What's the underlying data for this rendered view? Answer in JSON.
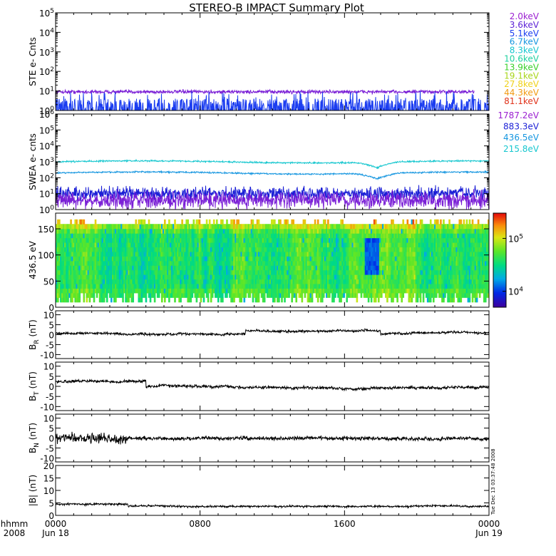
{
  "title": "STEREO-B IMPACT Summary Plot",
  "side_stamp": "Tue Dec 13 03:37:48 2008",
  "time_axis": {
    "row1_label": "hhmm",
    "row2_label": "2008",
    "ticks": [
      {
        "hour": 0,
        "label": "0000",
        "sub": "Jun 18"
      },
      {
        "hour": 8,
        "label": "0800",
        "sub": ""
      },
      {
        "hour": 16,
        "label": "1600",
        "sub": ""
      },
      {
        "hour": 24,
        "label": "0000",
        "sub": "Jun 19"
      }
    ]
  },
  "chart_data": [
    {
      "id": "ste",
      "type": "line",
      "ylabel": "STE e- Cnts",
      "yscale": "log",
      "ylim": [
        1,
        100000
      ],
      "yticks": [
        "10^0",
        "10^1",
        "10^2",
        "10^3",
        "10^4",
        "10^5"
      ],
      "legend": [
        {
          "label": "2.0keV",
          "color": "#9b1fd1"
        },
        {
          "label": "3.6keV",
          "color": "#5a1fd6"
        },
        {
          "label": "5.1keV",
          "color": "#1b3df0"
        },
        {
          "label": "6.7keV",
          "color": "#1596e0"
        },
        {
          "label": "8.3keV",
          "color": "#17c7cf"
        },
        {
          "label": "10.6keV",
          "color": "#1fd1a0"
        },
        {
          "label": "13.9keV",
          "color": "#3ad12a"
        },
        {
          "label": "19.1keV",
          "color": "#a8d61a"
        },
        {
          "label": "27.8keV",
          "color": "#f0d21a"
        },
        {
          "label": "44.3keV",
          "color": "#f29a12"
        },
        {
          "label": "81.1keV",
          "color": "#e0321a"
        }
      ],
      "series": [
        {
          "color": "#7a1fd6",
          "level": 9,
          "spread": 0.08,
          "end_hour": 23.2
        },
        {
          "color": "#1b3df0",
          "level": 1,
          "spread": 0.5,
          "end_hour": 24
        }
      ]
    },
    {
      "id": "swea",
      "type": "line",
      "ylabel": "SWEA e- cnts",
      "yscale": "log",
      "ylim": [
        1,
        1000000
      ],
      "yticks": [
        "10^0",
        "10^1",
        "10^2",
        "10^3",
        "10^4",
        "10^5",
        "10^6"
      ],
      "legend": [
        {
          "label": "1787.2eV",
          "color": "#9b1fd1"
        },
        {
          "label": "883.3eV",
          "color": "#1b1fd6"
        },
        {
          "label": "436.5eV",
          "color": "#1596e0"
        },
        {
          "label": "215.8eV",
          "color": "#17c7cf"
        }
      ],
      "series": [
        {
          "color": "#17c7cf",
          "level": 1000,
          "spread": 0.04,
          "dip_hour": 17.8,
          "dip_factor": 0.45
        },
        {
          "color": "#1596e0",
          "level": 200,
          "spread": 0.04,
          "dip_hour": 17.8,
          "dip_factor": 0.45
        },
        {
          "color": "#1b1fd6",
          "level": 10,
          "spread": 0.35
        },
        {
          "color": "#7a1fd6",
          "level": 4,
          "spread": 0.45
        }
      ]
    },
    {
      "id": "pad",
      "type": "heatmap",
      "ylabel": "436.5 eV",
      "ylim": [
        0,
        180
      ],
      "yticks": [
        "0",
        "50",
        "100",
        "150"
      ],
      "colorbar": {
        "ticks": [
          "10^5",
          "10^4"
        ],
        "range": [
          5000,
          300000
        ],
        "scale": "log"
      }
    },
    {
      "id": "br",
      "type": "line",
      "ylabel": "B_R (nT)",
      "ylim": [
        -12,
        12
      ],
      "yticks": [
        "-10",
        "-5",
        "0",
        "5",
        "10"
      ],
      "color": "#000000"
    },
    {
      "id": "bt",
      "type": "line",
      "ylabel": "B_T (nT)",
      "ylim": [
        -12,
        12
      ],
      "yticks": [
        "-10",
        "-5",
        "0",
        "5",
        "10"
      ],
      "color": "#000000"
    },
    {
      "id": "bn",
      "type": "line",
      "ylabel": "B_N (nT)",
      "ylim": [
        -12,
        12
      ],
      "yticks": [
        "-10",
        "-5",
        "0",
        "5",
        "10"
      ],
      "color": "#000000"
    },
    {
      "id": "bmag",
      "type": "line",
      "ylabel": "|B| (nT)",
      "ylim": [
        0,
        20
      ],
      "yticks": [
        "0",
        "5",
        "10",
        "15",
        "20"
      ],
      "color": "#000000"
    }
  ]
}
